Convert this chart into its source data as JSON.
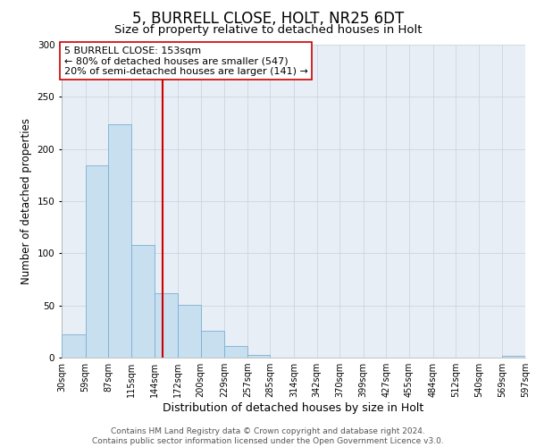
{
  "title": "5, BURRELL CLOSE, HOLT, NR25 6DT",
  "subtitle": "Size of property relative to detached houses in Holt",
  "xlabel": "Distribution of detached houses by size in Holt",
  "ylabel": "Number of detached properties",
  "bar_heights": [
    22,
    184,
    224,
    108,
    62,
    51,
    26,
    11,
    3,
    0,
    0,
    0,
    0,
    0,
    0,
    0,
    0,
    0,
    0,
    2
  ],
  "bin_edges": [
    30,
    59,
    87,
    115,
    144,
    172,
    200,
    229,
    257,
    285,
    314,
    342,
    370,
    399,
    427,
    455,
    484,
    512,
    540,
    569,
    597
  ],
  "tick_labels": [
    "30sqm",
    "59sqm",
    "87sqm",
    "115sqm",
    "144sqm",
    "172sqm",
    "200sqm",
    "229sqm",
    "257sqm",
    "285sqm",
    "314sqm",
    "342sqm",
    "370sqm",
    "399sqm",
    "427sqm",
    "455sqm",
    "484sqm",
    "512sqm",
    "540sqm",
    "569sqm",
    "597sqm"
  ],
  "bar_color": "#c8dff0",
  "bar_edge_color": "#7bafd4",
  "vline_x": 153,
  "vline_color": "#cc0000",
  "annotation_line1": "5 BURRELL CLOSE: 153sqm",
  "annotation_line2": "← 80% of detached houses are smaller (547)",
  "annotation_line3": "20% of semi-detached houses are larger (141) →",
  "ylim": [
    0,
    300
  ],
  "yticks": [
    0,
    50,
    100,
    150,
    200,
    250,
    300
  ],
  "grid_color": "#ccd5e0",
  "background_color": "#e8eef5",
  "footer_line1": "Contains HM Land Registry data © Crown copyright and database right 2024.",
  "footer_line2": "Contains public sector information licensed under the Open Government Licence v3.0.",
  "title_fontsize": 12,
  "subtitle_fontsize": 9.5,
  "xlabel_fontsize": 9,
  "ylabel_fontsize": 8.5,
  "tick_fontsize": 7,
  "annotation_fontsize": 8,
  "footer_fontsize": 6.5
}
